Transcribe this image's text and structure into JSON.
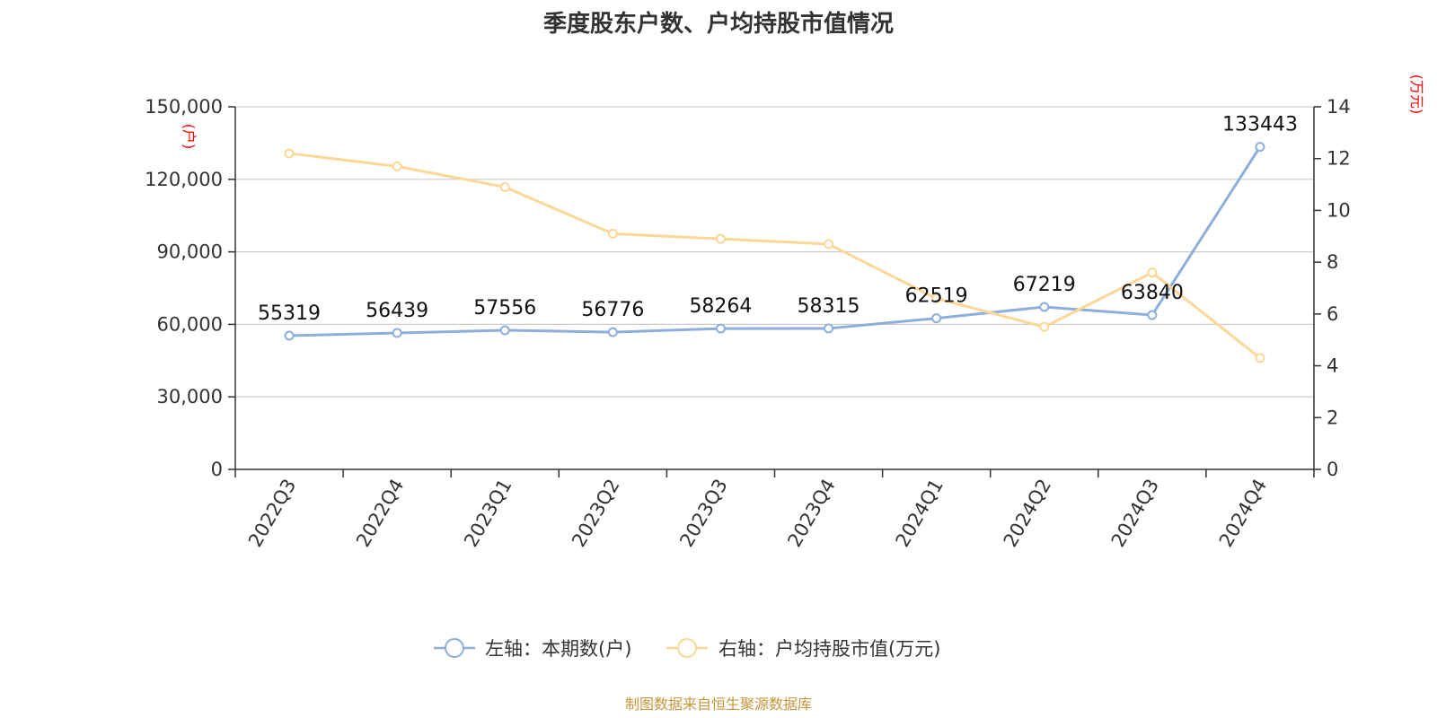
{
  "chart_data": {
    "type": "line",
    "title": "季度股东户数、户均持股市值情况",
    "categories": [
      "2022Q3",
      "2022Q4",
      "2023Q1",
      "2023Q2",
      "2023Q3",
      "2023Q4",
      "2024Q1",
      "2024Q2",
      "2024Q3",
      "2024Q4"
    ],
    "left_axis": {
      "unit": "(户)",
      "ylim": [
        0,
        150000
      ],
      "ticks": [
        0,
        30000,
        60000,
        90000,
        120000,
        150000
      ],
      "tick_labels": [
        "0",
        "30,000",
        "60,000",
        "90,000",
        "120,000",
        "150,000"
      ]
    },
    "right_axis": {
      "unit": "(万元)",
      "ylim": [
        0,
        14
      ],
      "ticks": [
        0,
        2,
        4,
        6,
        8,
        10,
        12,
        14
      ],
      "tick_labels": [
        "0",
        "2",
        "4",
        "6",
        "8",
        "10",
        "12",
        "14"
      ]
    },
    "series": [
      {
        "name": "左轴：本期数(户)",
        "axis": "left",
        "color": "#8eaedb",
        "values": [
          55319,
          56439,
          57556,
          56776,
          58264,
          58315,
          62519,
          67219,
          63840,
          133443
        ],
        "labels": [
          "55319",
          "56439",
          "57556",
          "56776",
          "58264",
          "58315",
          "62519",
          "67219",
          "63840",
          "133443"
        ]
      },
      {
        "name": "右轴：户均持股市值(万元)",
        "axis": "right",
        "color": "#fcd796",
        "values": [
          12.2,
          11.7,
          10.9,
          9.1,
          8.9,
          8.7,
          6.6,
          5.5,
          7.6,
          4.3
        ]
      }
    ],
    "grid": true,
    "legend_position": "bottom-center",
    "source": "制图数据来自恒生聚源数据库"
  }
}
